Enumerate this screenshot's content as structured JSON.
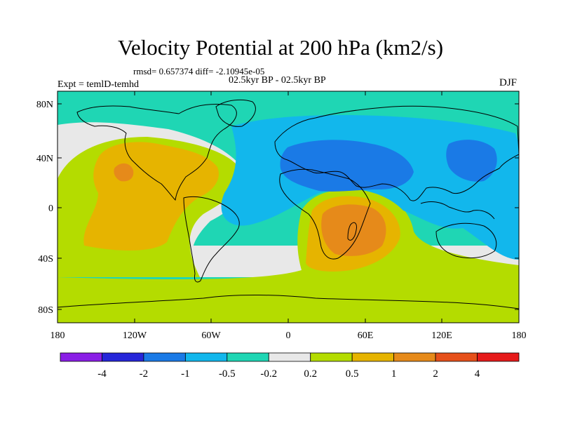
{
  "title": "Velocity Potential at 200 hPa (km2/s)",
  "stats": "rmsd= 0.657374 diff= -2.10945e-05",
  "period": "02.5kyr BP - 02.5kyr BP",
  "experiment": "Expt = temlD-temhd",
  "season": "DJF",
  "lat_labels": [
    "80N",
    "40N",
    "0",
    "40S",
    "80S"
  ],
  "lon_labels": [
    "180",
    "120W",
    "60W",
    "0",
    "60E",
    "120E",
    "180"
  ],
  "colorbar": {
    "labels": [
      "-4",
      "-2",
      "-1",
      "-0.5",
      "-0.2",
      "0.2",
      "0.5",
      "1",
      "2",
      "4"
    ],
    "colors": [
      "#8a1ee6",
      "#2626d9",
      "#1a7ae6",
      "#12b7ec",
      "#1fd6b4",
      "#e8e8e8",
      "#b4dc00",
      "#e6b400",
      "#e68a1a",
      "#e6501a",
      "#e61a1a"
    ]
  },
  "field_colors": {
    "teal": "#1fd6b4",
    "cyan": "#12b7ec",
    "blue": "#1a7ae6",
    "neutral": "#e8e8e8",
    "lime": "#b4dc00",
    "yellow": "#e6b400",
    "orange": "#e68a1a"
  }
}
